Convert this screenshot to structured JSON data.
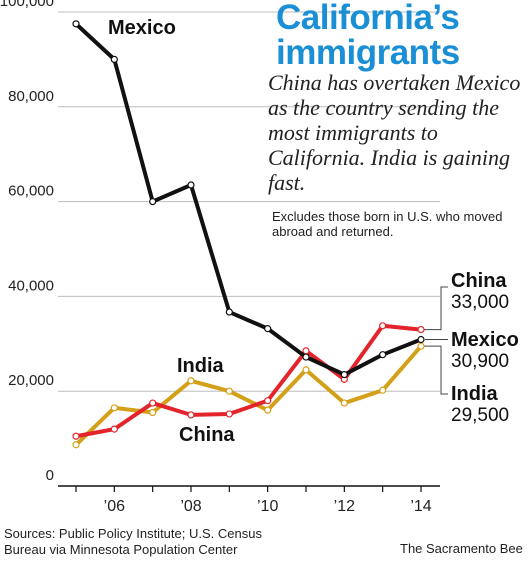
{
  "header": {
    "title_line1": "California’s",
    "title_line2": "immigrants",
    "subtitle": "China has overtaken Mexico as the country sending the most immigrants to California. India is gaining fast.",
    "note": "Excludes those born in U.S. who moved abroad and returned."
  },
  "footer": {
    "sources": "Sources: Public Policy Institute; U.S. Census Bureau via Minnesota Population Center",
    "credit": "The Sacramento Bee"
  },
  "end_labels": {
    "china": {
      "name": "China",
      "value": "33,000"
    },
    "mexico": {
      "name": "Mexico",
      "value": "30,900"
    },
    "india": {
      "name": "India",
      "value": "29,500"
    }
  },
  "chart_data": {
    "type": "line",
    "title": "California’s immigrants",
    "x": [
      2005,
      2006,
      2007,
      2008,
      2009,
      2010,
      2011,
      2012,
      2013,
      2014
    ],
    "xticks": [
      2006,
      2008,
      2010,
      2012,
      2014
    ],
    "xtick_labels": [
      "’06",
      "’08",
      "’10",
      "’12",
      "’14"
    ],
    "ylim": [
      0,
      100000
    ],
    "yticks": [
      0,
      20000,
      40000,
      60000,
      80000,
      100000
    ],
    "ytick_labels": [
      "0",
      "20,000",
      "40,000",
      "60,000",
      "80,000",
      "100,000"
    ],
    "grid": true,
    "series": [
      {
        "name": "Mexico",
        "color": "#111111",
        "values": [
          97500,
          90000,
          60000,
          63500,
          36700,
          33200,
          27200,
          23500,
          27700,
          30900
        ]
      },
      {
        "name": "China",
        "color": "#e3242b",
        "values": [
          10500,
          12000,
          17500,
          15000,
          15200,
          18000,
          28500,
          22500,
          33800,
          33000
        ]
      },
      {
        "name": "India",
        "color": "#d4a017",
        "values": [
          8700,
          16500,
          15500,
          22200,
          20000,
          16000,
          24500,
          17500,
          20200,
          29500
        ]
      }
    ],
    "inline_labels": [
      "Mexico",
      "India",
      "China"
    ]
  }
}
